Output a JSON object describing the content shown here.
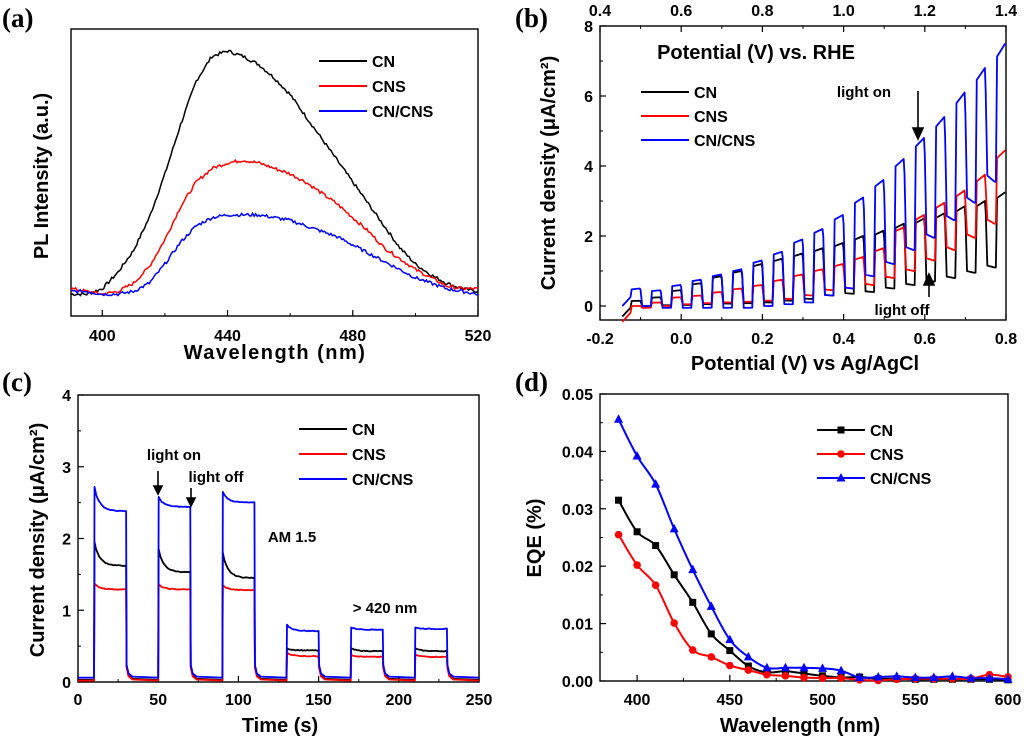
{
  "colors": {
    "CN": "#000000",
    "CNS": "#ff0000",
    "CN/CNS": "#0000ff"
  },
  "chart_data": [
    {
      "panel": "(a)",
      "type": "line",
      "title": "",
      "xlabel": "Wavelength (nm)",
      "ylabel": "PL Intensity (a.u.)",
      "xlim": [
        390,
        520
      ],
      "ylim": [
        0,
        1
      ],
      "xticks": [
        400,
        440,
        480,
        520
      ],
      "yticks": [],
      "legend_position": "top-right",
      "x": [
        390,
        395,
        400,
        405,
        410,
        415,
        420,
        425,
        430,
        435,
        440,
        445,
        450,
        455,
        460,
        465,
        470,
        475,
        480,
        485,
        490,
        495,
        500,
        505,
        510,
        515,
        520
      ],
      "series": [
        {
          "name": "CN",
          "values": [
            0.08,
            0.08,
            0.1,
            0.16,
            0.24,
            0.36,
            0.52,
            0.7,
            0.86,
            0.95,
            0.97,
            0.95,
            0.92,
            0.87,
            0.81,
            0.73,
            0.65,
            0.57,
            0.49,
            0.41,
            0.33,
            0.25,
            0.19,
            0.15,
            0.12,
            0.1,
            0.09
          ]
        },
        {
          "name": "CNS",
          "values": [
            0.1,
            0.09,
            0.08,
            0.09,
            0.12,
            0.18,
            0.28,
            0.4,
            0.49,
            0.54,
            0.56,
            0.57,
            0.56,
            0.54,
            0.52,
            0.49,
            0.45,
            0.41,
            0.36,
            0.31,
            0.25,
            0.21,
            0.17,
            0.14,
            0.11,
            0.1,
            0.1
          ]
        },
        {
          "name": "CN/CNS",
          "values": [
            0.09,
            0.09,
            0.08,
            0.08,
            0.09,
            0.12,
            0.19,
            0.27,
            0.33,
            0.36,
            0.37,
            0.37,
            0.37,
            0.36,
            0.35,
            0.33,
            0.31,
            0.29,
            0.26,
            0.23,
            0.2,
            0.17,
            0.14,
            0.12,
            0.1,
            0.09,
            0.08
          ]
        }
      ]
    },
    {
      "panel": "(b)",
      "type": "line",
      "title": "",
      "xlabel": "Potential (V) vs Ag/AgCl",
      "ylabel": "Current density (μA/cm²)",
      "top_xlabel": "Potential (V) vs. RHE",
      "xlim": [
        -0.2,
        0.8
      ],
      "top_xlim": [
        0.4,
        1.4
      ],
      "ylim": [
        -0.4,
        8
      ],
      "xticks": [
        "-0.2",
        "0.0",
        "0.2",
        "0.4",
        "0.6",
        "0.8"
      ],
      "top_xticks": [
        "0.4",
        "0.6",
        "0.8",
        "1.0",
        "1.2",
        "1.4"
      ],
      "yticks": [
        "0",
        "2",
        "4",
        "6",
        "8"
      ],
      "legend_position": "upper-left",
      "annotations": [
        "light on",
        "light off"
      ],
      "chopped": {
        "start": -0.145,
        "first_on": -0.125,
        "period": 0.05,
        "on_duration": 0.025,
        "on_starts": [
          -0.125,
          -0.075,
          -0.025,
          0.025,
          0.075,
          0.125,
          0.175,
          0.225,
          0.275,
          0.325,
          0.375,
          0.425,
          0.475,
          0.525,
          0.575,
          0.625,
          0.675,
          0.725,
          0.775
        ]
      },
      "series": [
        {
          "name": "CN",
          "on_values": [
            0.15,
            0.25,
            0.45,
            0.65,
            0.85,
            1.0,
            1.2,
            1.35,
            1.5,
            1.65,
            1.8,
            2.0,
            2.15,
            2.35,
            2.5,
            2.65,
            2.85,
            3.0,
            3.25
          ],
          "off_values": [
            -0.05,
            0.0,
            0.02,
            0.03,
            0.05,
            0.07,
            0.08,
            0.1,
            0.15,
            0.2,
            0.3,
            0.35,
            0.4,
            0.5,
            0.6,
            0.7,
            0.8,
            0.95,
            1.1
          ]
        },
        {
          "name": "CNS",
          "on_values": [
            0.0,
            0.1,
            0.25,
            0.3,
            0.4,
            0.5,
            0.6,
            0.75,
            0.9,
            1.05,
            1.2,
            1.4,
            1.65,
            2.25,
            2.6,
            2.95,
            3.3,
            3.75,
            4.45
          ],
          "off_values": [
            -0.2,
            -0.05,
            0.0,
            0.05,
            0.08,
            0.1,
            0.12,
            0.15,
            0.2,
            0.3,
            0.45,
            0.5,
            0.6,
            0.8,
            1.0,
            1.3,
            1.6,
            1.95,
            2.35
          ]
        },
        {
          "name": "CN/CNS",
          "on_values": [
            0.5,
            0.45,
            0.6,
            0.75,
            0.9,
            1.05,
            1.3,
            1.55,
            1.9,
            2.2,
            2.6,
            3.1,
            3.6,
            4.2,
            4.8,
            5.4,
            6.1,
            6.8,
            7.5
          ],
          "off_values": [
            0.25,
            0.0,
            -0.05,
            -0.05,
            -0.05,
            -0.05,
            -0.05,
            0.0,
            0.05,
            0.1,
            0.3,
            0.5,
            0.85,
            1.2,
            1.6,
            1.95,
            2.45,
            2.95,
            3.55
          ]
        }
      ]
    },
    {
      "panel": "(c)",
      "type": "line",
      "title": "",
      "xlabel": "Time (s)",
      "ylabel": "Current density (μA/cm²)",
      "xlim": [
        0,
        250
      ],
      "ylim": [
        0,
        4
      ],
      "xticks": [
        "0",
        "50",
        "100",
        "150",
        "200",
        "250"
      ],
      "yticks": [
        "0",
        "1",
        "2",
        "3",
        "4"
      ],
      "legend_position": "top-right",
      "annotations": [
        "light on",
        "light off",
        "AM 1.5",
        "> 420 nm"
      ],
      "on_intervals": [
        [
          10,
          30
        ],
        [
          50,
          70
        ],
        [
          90,
          110
        ],
        [
          130,
          150
        ],
        [
          170,
          190
        ],
        [
          210,
          230
        ]
      ],
      "series": [
        {
          "name": "CN",
          "dark": 0.03,
          "peak": [
            1.95,
            1.85,
            1.8,
            0.47,
            0.47,
            0.47
          ],
          "steady": [
            1.62,
            1.53,
            1.45,
            0.44,
            0.43,
            0.43
          ]
        },
        {
          "name": "CNS",
          "dark": 0.02,
          "peak": [
            1.37,
            1.36,
            1.35,
            0.41,
            0.38,
            0.38
          ],
          "steady": [
            1.29,
            1.29,
            1.28,
            0.36,
            0.35,
            0.35
          ]
        },
        {
          "name": "CN/CNS",
          "dark": 0.06,
          "peak": [
            2.72,
            2.58,
            2.65,
            0.8,
            0.76,
            0.76
          ],
          "steady": [
            2.38,
            2.44,
            2.5,
            0.71,
            0.73,
            0.74
          ]
        }
      ]
    },
    {
      "panel": "(d)",
      "type": "line",
      "title": "",
      "xlabel": "Wavelength (nm)",
      "ylabel": "EQE (%)",
      "xlim": [
        380,
        600
      ],
      "ylim": [
        0,
        0.05
      ],
      "xticks": [
        "400",
        "450",
        "500",
        "550",
        "600"
      ],
      "yticks": [
        "0.00",
        "0.01",
        "0.02",
        "0.03",
        "0.04",
        "0.05"
      ],
      "legend_position": "top-right",
      "x": [
        390,
        400,
        410,
        420,
        430,
        440,
        450,
        460,
        470,
        480,
        490,
        500,
        510,
        520,
        530,
        540,
        550,
        560,
        570,
        580,
        590,
        600
      ],
      "series": [
        {
          "name": "CN",
          "marker": "square",
          "values": [
            0.0315,
            0.026,
            0.0236,
            0.0185,
            0.0137,
            0.0082,
            0.0053,
            0.0026,
            0.0015,
            0.0017,
            0.0013,
            0.0009,
            0.0006,
            0.0007,
            0.0004,
            0.0004,
            0.0003,
            0.0003,
            0.0003,
            0.0003,
            0.0003,
            0.0002
          ]
        },
        {
          "name": "CNS",
          "marker": "circle",
          "values": [
            0.0255,
            0.0202,
            0.0167,
            0.0101,
            0.0054,
            0.0042,
            0.0027,
            0.0019,
            0.0011,
            0.0009,
            0.0006,
            0.0005,
            0.0005,
            0.0002,
            0.0001,
            0.0003,
            0.0004,
            0.0004,
            0.0004,
            0.0004,
            0.0011,
            0.0007
          ]
        },
        {
          "name": "CN/CNS",
          "marker": "triangle",
          "values": [
            0.0456,
            0.0392,
            0.0343,
            0.0265,
            0.0194,
            0.013,
            0.0072,
            0.0042,
            0.0023,
            0.0023,
            0.0023,
            0.0022,
            0.0018,
            0.0006,
            0.0007,
            0.0008,
            0.0006,
            0.0006,
            0.0008,
            0.0005,
            0.0005,
            0.0003
          ]
        }
      ]
    }
  ]
}
